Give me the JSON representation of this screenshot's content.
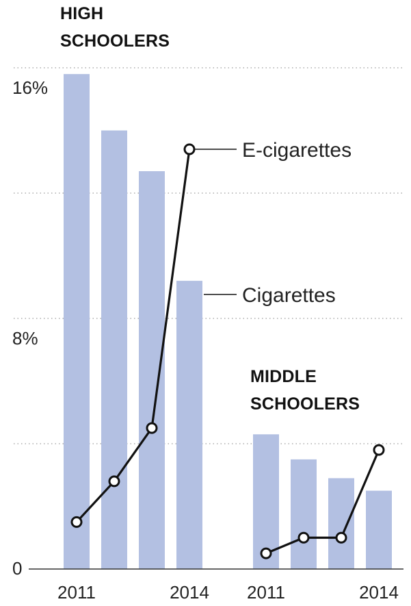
{
  "chart_data": [
    {
      "type": "bar",
      "panel": "HIGH SCHOOLERS",
      "title_lines": [
        "HIGH",
        "SCHOOLERS"
      ],
      "categories": [
        "2011",
        "2012",
        "2013",
        "2014"
      ],
      "tick_labels": [
        "2011",
        "",
        "",
        "2014"
      ],
      "ylim": [
        0,
        16
      ],
      "yticks": [
        0,
        4,
        8,
        12,
        16
      ],
      "ytick_labels": [
        "0",
        "",
        "8%",
        "",
        "16%"
      ],
      "grid": true,
      "series": [
        {
          "name": "Cigarettes",
          "kind": "bar",
          "values": [
            15.8,
            14.0,
            12.7,
            9.2
          ]
        },
        {
          "name": "E-cigarettes",
          "kind": "line",
          "values": [
            1.5,
            2.8,
            4.5,
            13.4
          ]
        }
      ]
    },
    {
      "type": "bar",
      "panel": "MIDDLE SCHOOLERS",
      "title_lines": [
        "MIDDLE",
        "SCHOOLERS"
      ],
      "categories": [
        "2011",
        "2012",
        "2013",
        "2014"
      ],
      "tick_labels": [
        "2011",
        "",
        "",
        "2014"
      ],
      "ylim": [
        0,
        16
      ],
      "grid": true,
      "series": [
        {
          "name": "Cigarettes",
          "kind": "bar",
          "values": [
            4.3,
            3.5,
            2.9,
            2.5
          ]
        },
        {
          "name": "E-cigarettes",
          "kind": "line",
          "values": [
            0.5,
            1.0,
            1.0,
            3.8
          ]
        }
      ]
    }
  ],
  "legend": {
    "ecig_label": "E-cigarettes",
    "cig_label": "Cigarettes"
  },
  "colors": {
    "bar": "#b3c0e2",
    "line": "#111111",
    "grid": "#9a9a9a"
  }
}
